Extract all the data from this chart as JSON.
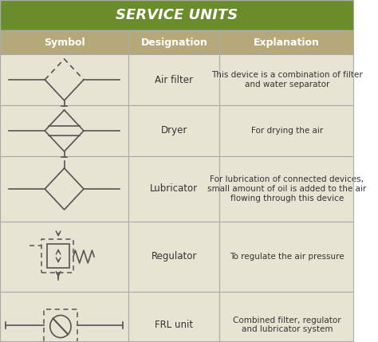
{
  "title": "SERVICE UNITS",
  "title_bg": "#6b8c2a",
  "title_color": "#ffffff",
  "header_bg": "#b5a97a",
  "header_color": "#ffffff",
  "row_bg": "#e8e4d4",
  "border_color": "#aaaaaa",
  "col_headers": [
    "Symbol",
    "Designation",
    "Explanation"
  ],
  "rows": [
    {
      "designation": "Air filter",
      "explanation": "This device is a combination of filter\nand water separator"
    },
    {
      "designation": "Dryer",
      "explanation": "For drying the air"
    },
    {
      "designation": "Lubricator",
      "explanation": "For lubrication of connected devices,\nsmall amount of oil is added to the air\nflowing through this device"
    },
    {
      "designation": "Regulator",
      "explanation": "To regulate the air pressure"
    },
    {
      "designation": "FRL unit",
      "explanation": "Combined filter, regulator\nand lubricator system"
    }
  ],
  "symbol_color": "#555555",
  "figsize": [
    4.74,
    4.29
  ],
  "dpi": 100
}
